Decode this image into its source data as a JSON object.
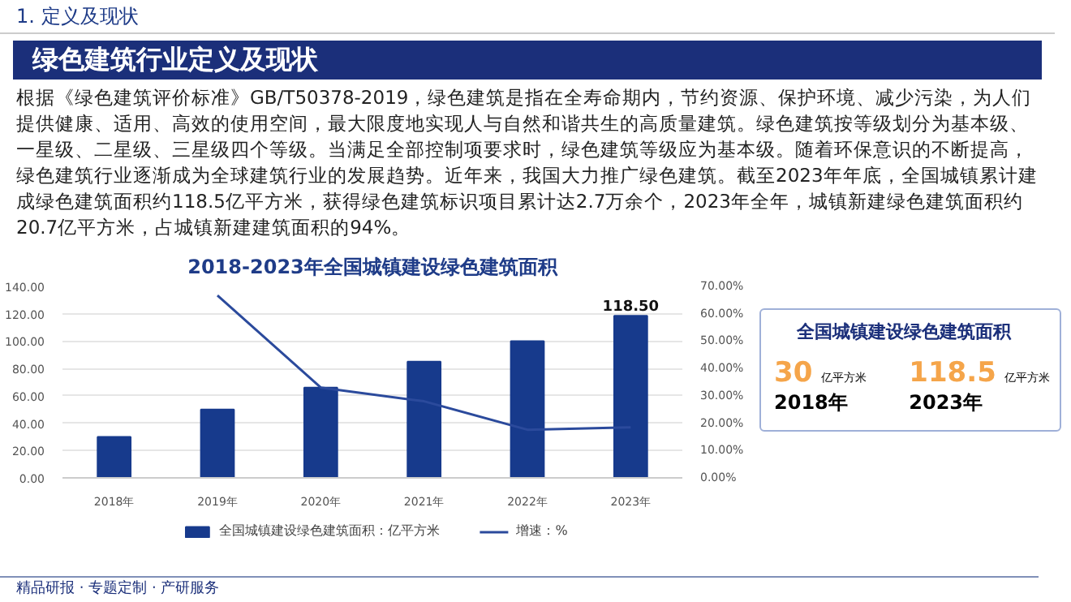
{
  "chart_data": {
    "type": "bar",
    "title": "2018-2023年全国城镇建设绿色建筑面积",
    "categories": [
      "2018年",
      "2019年",
      "2020年",
      "2021年",
      "2022年",
      "2023年"
    ],
    "series": [
      {
        "name": "全国城镇建设绿色建筑面积：亿平方米",
        "color": "#173a8c",
        "values": [
          30,
          50,
          66,
          85,
          100,
          118.5
        ],
        "value_labels": [
          null,
          null,
          null,
          null,
          null,
          "118.50"
        ]
      },
      {
        "name": "增速：%",
        "type": "line",
        "axis": "y2",
        "color": "#2b4a9c",
        "values": [
          null,
          66.7,
          33,
          28,
          17.6,
          18.5
        ]
      }
    ],
    "ylim": [
      0,
      140
    ],
    "yticks": [
      {
        "value": 0,
        "label": "0.00"
      },
      {
        "value": 20,
        "label": "20.00"
      },
      {
        "value": 40,
        "label": "40.00"
      },
      {
        "value": 60,
        "label": "60.00"
      },
      {
        "value": 80,
        "label": "80.00"
      },
      {
        "value": 100,
        "label": "100.00"
      },
      {
        "value": 120,
        "label": "120.00"
      },
      {
        "value": 140,
        "label": "140.00"
      }
    ],
    "y2lim": [
      0,
      70
    ],
    "y2ticks": [
      {
        "value": 0,
        "label": "0.00%"
      },
      {
        "value": 10,
        "label": "10.00%"
      },
      {
        "value": 20,
        "label": "20.00%"
      },
      {
        "value": 30,
        "label": "30.00%"
      },
      {
        "value": 40,
        "label": "40.00%"
      },
      {
        "value": 50,
        "label": "50.00%"
      },
      {
        "value": 60,
        "label": "60.00%"
      },
      {
        "value": 70,
        "label": "70.00%"
      }
    ],
    "grid": "y",
    "legend": "bottom",
    "annotations": [
      "1. 定义及现状",
      "绿色建筑行业定义及现状",
      "根据《绿色建筑评价标准》GB/T50378-2019，绿色建筑是指在全寿命期内，节约资源、保护环境、减少污染，为人们提供健康、适用、高效的使用空间，最大限度地实现人与自然和谐共生的高质量建筑。绿色建筑按等级划分为基本级、一星级、二星级、三星级四个等级。当满足全部控制项要求时，绿色建筑等级应为基本级。随着环保意识的不断提高，绿色建筑行业逐渐成为全球建筑行业的发展趋势。近年来，我国大力推广绿色建筑。截至2023年年底，全国城镇累计建成绿色建筑面积约118.5亿平方米，获得绿色建筑标识项目累计达2.7万余个，2023年全年，城镇新建绿色建筑面积约20.7亿平方米，占城镇新建建筑面积的94%。",
      "全国城镇建设绿色建筑面积",
      "30",
      "亿平方米",
      "2018年",
      "118.5",
      "亿平方米",
      "2023年",
      "精品研报 · 专题定制 · 产研服务"
    ]
  }
}
